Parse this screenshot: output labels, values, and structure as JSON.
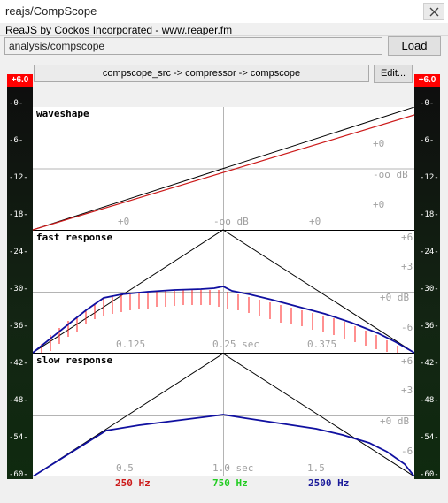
{
  "window": {
    "title": "reajs/CompScope",
    "subtitle": "ReaJS by Cockos Incorporated - www.reaper.fm"
  },
  "file": {
    "path": "analysis/compscope",
    "load_label": "Load"
  },
  "fx_chain": {
    "label": "compscope_src -> compressor -> compscope",
    "edit_label": "Edit..."
  },
  "meters": {
    "peak_left": "+6.0",
    "peak_right": "+6.0",
    "scale": [
      "-0-",
      "-6-",
      "-12-",
      "-18-",
      "-24-",
      "-30-",
      "-36-",
      "-42-",
      "-48-",
      "-54-",
      "-60-"
    ]
  },
  "panels": {
    "waveshape": {
      "title": "waveshape",
      "db_right_top": "+0",
      "db_right_mid": "-oo dB",
      "db_right_low": "+0",
      "x_left": "+0",
      "x_mid": "-oo dB",
      "x_right": "+0"
    },
    "fast": {
      "title": "fast response",
      "db": [
        "+6",
        "+3",
        "+0 dB",
        "-6"
      ],
      "ticks": [
        "0.125",
        "0.25 sec",
        "0.375"
      ]
    },
    "slow": {
      "title": "slow response",
      "db": [
        "+6",
        "+3",
        "+0 dB",
        "-6"
      ],
      "ticks": [
        "0.5",
        "1.0 sec",
        "1.5"
      ]
    }
  },
  "legend": {
    "f250": "250 Hz",
    "f750": "750 Hz",
    "f2500": "2500 Hz"
  },
  "colors": {
    "red": "#ff2020",
    "green": "#22cc22",
    "blue": "#1010a0",
    "black": "#000000",
    "grid": "#b4b4b4"
  }
}
